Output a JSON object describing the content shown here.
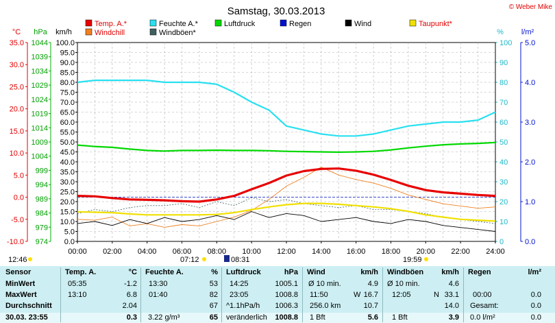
{
  "header": {
    "title": "Samstag, 30.03.2013",
    "copyright": "© Weber Mike"
  },
  "legend": [
    {
      "label": "Temp. A.*",
      "color": "#e80000"
    },
    {
      "label": "Feuchte A.*",
      "color": "#28e0f0"
    },
    {
      "label": "Luftdruck",
      "color": "#00d800"
    },
    {
      "label": "Regen",
      "color": "#0010d0"
    },
    {
      "label": "Wind",
      "color": "#000000"
    },
    {
      "label": "Taupunkt*",
      "color": "#f0e000"
    },
    {
      "label": "Windchill",
      "color": "#f08020"
    },
    {
      "label": "Windböen*",
      "color": "#406060"
    }
  ],
  "axes": {
    "temp_unit": "°C",
    "pressure_unit": "hPa",
    "wind_unit": "km/h",
    "humidity_unit": "%",
    "rain_unit": "l/m²",
    "temp_ticks": [
      "35.0",
      "30.0",
      "25.0",
      "20.0",
      "15.0",
      "10.0",
      "5.0",
      "0.0",
      "-5.0",
      "-10.0"
    ],
    "pressure_ticks": [
      "1044",
      "1039",
      "1034",
      "1029",
      "1024",
      "1019",
      "1014",
      "1009",
      "1004",
      "999",
      "994",
      "989",
      "984",
      "979",
      "974"
    ],
    "wind_ticks": [
      "100.0",
      "95.0",
      "90.0",
      "85.0",
      "80.0",
      "75.0",
      "70.0",
      "65.0",
      "60.0",
      "55.0",
      "50.0",
      "45.0",
      "40.0",
      "35.0",
      "30.0",
      "25.0",
      "20.0",
      "15.0",
      "10.0",
      "5.0",
      "0.0"
    ],
    "humidity_ticks": [
      "100",
      "90",
      "80",
      "70",
      "60",
      "50",
      "40",
      "30",
      "20",
      "10",
      "0"
    ],
    "rain_ticks": [
      "5.0",
      "4.0",
      "3.0",
      "2.0",
      "1.0",
      "0.0"
    ],
    "time_ticks": [
      "00:00",
      "02:00",
      "04:00",
      "06:00",
      "08:00",
      "10:00",
      "12:00",
      "14:00",
      "16:00",
      "18:00",
      "20:00",
      "22:00",
      "24:00"
    ]
  },
  "sun_moon": {
    "moonset": "12:46",
    "sunrise": "07:12",
    "moonrise": "08:31",
    "sunset": "19:59"
  },
  "chart_data": {
    "type": "line",
    "x_unit": "hours",
    "xlim": [
      0,
      24
    ],
    "series": [
      {
        "name": "Temp. A.*",
        "axis": "°C",
        "ylim": [
          -10,
          35
        ],
        "color": "#e80000",
        "x": [
          0,
          1,
          2,
          3,
          4,
          5,
          6,
          7,
          8,
          9,
          10,
          11,
          12,
          13,
          14,
          15,
          16,
          17,
          18,
          19,
          20,
          21,
          22,
          23,
          24
        ],
        "y": [
          0.3,
          0.2,
          -0.2,
          -0.5,
          -0.6,
          -0.7,
          -0.9,
          -1.0,
          -0.5,
          0.3,
          1.8,
          3.2,
          4.9,
          5.9,
          6.4,
          6.5,
          6.0,
          5.1,
          3.9,
          2.6,
          1.6,
          1.1,
          0.8,
          0.5,
          0.3
        ]
      },
      {
        "name": "Feuchte A.*",
        "axis": "%",
        "ylim": [
          0,
          100
        ],
        "color": "#28e0f0",
        "x": [
          0,
          1,
          2,
          3,
          4,
          5,
          6,
          7,
          8,
          9,
          10,
          11,
          12,
          13,
          14,
          15,
          16,
          17,
          18,
          19,
          20,
          21,
          22,
          23,
          24
        ],
        "y": [
          80,
          81,
          81,
          81,
          81,
          80,
          80,
          80,
          79,
          75,
          70,
          66,
          58,
          56,
          54,
          53,
          53,
          54,
          56,
          58,
          59,
          60,
          60,
          61,
          65
        ]
      },
      {
        "name": "Luftdruck",
        "axis": "hPa",
        "ylim": [
          974,
          1044
        ],
        "color": "#00d800",
        "x": [
          0,
          1,
          2,
          3,
          4,
          5,
          6,
          7,
          8,
          9,
          10,
          11,
          12,
          13,
          14,
          15,
          16,
          17,
          18,
          19,
          20,
          21,
          22,
          23,
          24
        ],
        "y": [
          1007.9,
          1007.4,
          1007.1,
          1006.5,
          1006.0,
          1005.8,
          1006.0,
          1006.0,
          1006.1,
          1006.0,
          1006.0,
          1005.9,
          1005.7,
          1005.6,
          1005.5,
          1005.4,
          1005.5,
          1005.7,
          1006.2,
          1006.9,
          1007.5,
          1008.0,
          1008.3,
          1008.5,
          1008.8
        ]
      },
      {
        "name": "Wind",
        "axis": "km/h",
        "ylim": [
          0,
          100
        ],
        "color": "#000000",
        "x": [
          0,
          1,
          2,
          3,
          4,
          5,
          6,
          7,
          8,
          9,
          10,
          11,
          12,
          13,
          14,
          15,
          16,
          17,
          18,
          19,
          20,
          21,
          22,
          23,
          24
        ],
        "y": [
          9,
          10,
          8,
          11,
          9,
          12,
          10,
          11,
          13,
          11,
          15,
          12,
          14,
          13,
          10,
          11,
          12,
          10,
          9,
          11,
          10,
          8,
          7,
          6,
          5
        ]
      },
      {
        "name": "Taupunkt*",
        "axis": "°C",
        "ylim": [
          -10,
          35
        ],
        "color": "#f0e000",
        "x": [
          0,
          1,
          2,
          3,
          4,
          5,
          6,
          7,
          8,
          9,
          10,
          11,
          12,
          13,
          14,
          15,
          16,
          17,
          18,
          19,
          20,
          21,
          22,
          23,
          24
        ],
        "y": [
          -3.3,
          -3.4,
          -3.5,
          -3.8,
          -4.0,
          -4.0,
          -4.0,
          -4.0,
          -3.9,
          -3.5,
          -2.8,
          -2.2,
          -1.7,
          -1.4,
          -1.4,
          -1.6,
          -1.9,
          -2.2,
          -2.6,
          -3.2,
          -4.0,
          -4.5,
          -5.0,
          -5.2,
          -5.4
        ]
      },
      {
        "name": "Windchill",
        "axis": "°C",
        "ylim": [
          -10,
          35
        ],
        "color": "#f08020",
        "x": [
          0,
          1,
          2,
          3,
          4,
          5,
          6,
          7,
          8,
          9,
          10,
          11,
          12,
          13,
          14,
          15,
          16,
          17,
          18,
          19,
          20,
          21,
          22,
          23,
          24
        ],
        "y": [
          -5.0,
          -5.2,
          -4.5,
          -6.5,
          -6.0,
          -6.8,
          -6.2,
          -6.5,
          -5.5,
          -4.5,
          -3.0,
          -0.5,
          2.5,
          4.5,
          6.8,
          5.0,
          4.0,
          3.2,
          2.0,
          0.5,
          -0.5,
          -1.5,
          -2.0,
          -2.5,
          -2.2
        ]
      },
      {
        "name": "Windböen*",
        "axis": "km/h",
        "ylim": [
          0,
          100
        ],
        "color": "#406060",
        "x": [
          0,
          1,
          2,
          3,
          4,
          5,
          6,
          7,
          8,
          9,
          10,
          11,
          12,
          13,
          14,
          15,
          16,
          17,
          18,
          19,
          20,
          21,
          22,
          23,
          24
        ],
        "y": [
          14,
          16,
          15,
          17,
          18,
          18,
          19,
          17,
          20,
          18,
          22,
          20,
          21,
          19,
          18,
          17,
          18,
          16,
          16,
          15,
          14,
          12,
          11,
          10,
          9
        ]
      }
    ]
  },
  "stats": {
    "sensor_col": {
      "header": "Sensor",
      "min": "MinWert",
      "max": "MaxWert",
      "avg": "Durchschnitt",
      "last": "30.03. 23:55"
    },
    "temp": {
      "header": "Temp. A.",
      "unit": "°C",
      "min_time": "05:35",
      "min_val": "-1.2",
      "max_time": "13:10",
      "max_val": "6.8",
      "avg_val": "2.04",
      "last_val": "0.3"
    },
    "humidity": {
      "header": "Feuchte A.",
      "unit": "%",
      "min_time": "13:30",
      "min_val": "53",
      "max_time": "01:40",
      "max_val": "82",
      "avg_val": "67",
      "last_sub": "3.22 g/m³",
      "last_val": "65"
    },
    "pressure": {
      "header": "Luftdruck",
      "unit": "hPa",
      "min_time": "14:25",
      "min_val": "1005.1",
      "max_time": "23:05",
      "max_val": "1008.8",
      "avg_label": "^1.1hPa/h",
      "avg_val": "1006.3",
      "last_label": "veränderlich",
      "last_val": "1008.8"
    },
    "wind": {
      "header": "Wind",
      "unit": "km/h",
      "r1_label": "Ø 10 min.",
      "r1_val": "4.9",
      "r2_label": "11:50",
      "r2_mid": "W",
      "r2_val": "16.7",
      "r3_label": "256.0 km",
      "r3_val": "10.7",
      "last_label": "1 Bft",
      "last_val": "5.6"
    },
    "gusts": {
      "header": "Windböen",
      "unit": "km/h",
      "r1_label": "Ø 10 min.",
      "r1_val": "4.6",
      "r2_label": "12:05",
      "r2_mid": "N",
      "r2_val": "33.1",
      "r3_val": "14.0",
      "last_label": "1 Bft",
      "last_val": "3.9"
    },
    "rain": {
      "header": "Regen",
      "unit": "l/m²",
      "r2_label": "00:00",
      "r2_val": "0.0",
      "r3_label": "Gesamt:",
      "r3_val": "0.0",
      "last_label": "0.0 l/m²",
      "last_val": "0.0"
    }
  }
}
